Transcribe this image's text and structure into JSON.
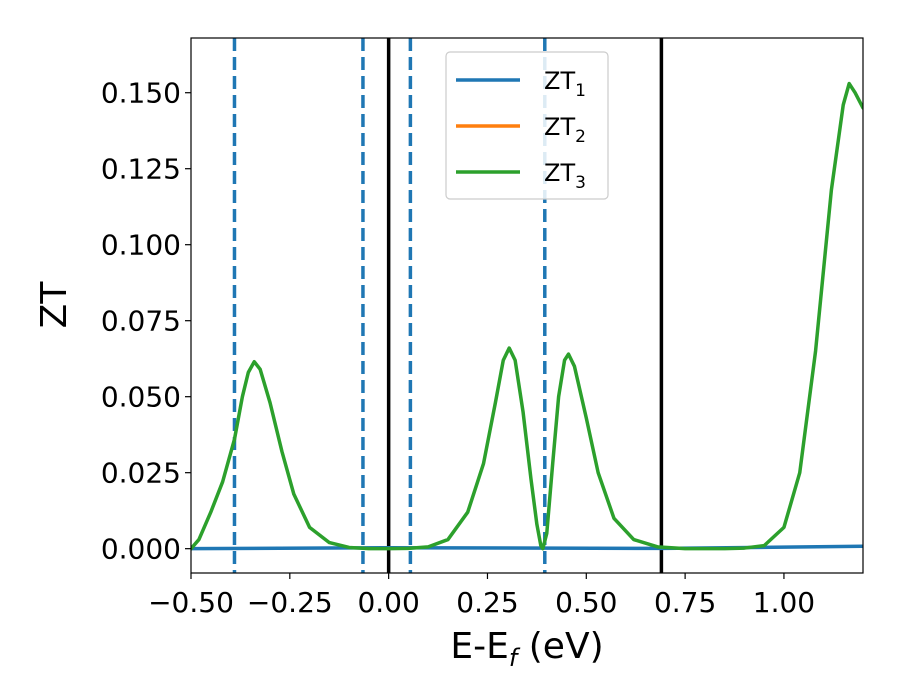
{
  "chart_data": {
    "type": "line",
    "title": "",
    "xlabel_main": "E-E",
    "xlabel_sub": "f",
    "xlabel_tail": " (eV)",
    "ylabel": "ZT",
    "xlim": [
      -0.5,
      1.2
    ],
    "ylim": [
      -0.008,
      0.168
    ],
    "grid": false,
    "legend_position": "upper-center",
    "xticks": [
      -0.5,
      -0.25,
      0.0,
      0.25,
      0.5,
      0.75,
      1.0
    ],
    "xtick_labels": [
      "−0.50",
      "−0.25",
      "0.00",
      "0.25",
      "0.50",
      "0.75",
      "1.00"
    ],
    "yticks": [
      0.0,
      0.025,
      0.05,
      0.075,
      0.1,
      0.125,
      0.15
    ],
    "ytick_labels": [
      "0.000",
      "0.025",
      "0.050",
      "0.075",
      "0.100",
      "0.125",
      "0.150"
    ],
    "vertical_lines": [
      {
        "x": -0.39,
        "style": "dashed",
        "color": "#1f77b4"
      },
      {
        "x": -0.065,
        "style": "dashed",
        "color": "#1f77b4"
      },
      {
        "x": 0.055,
        "style": "dashed",
        "color": "#1f77b4"
      },
      {
        "x": 0.395,
        "style": "dashed",
        "color": "#1f77b4"
      },
      {
        "x": 0.0,
        "style": "solid",
        "color": "#000000"
      },
      {
        "x": 0.69,
        "style": "solid",
        "color": "#000000"
      }
    ],
    "series": [
      {
        "name": "ZT",
        "sub": "1",
        "color": "#1f77b4",
        "points": [
          [
            -0.5,
            0.0
          ],
          [
            0.0,
            0.0003
          ],
          [
            0.7,
            0.0001
          ],
          [
            1.0,
            0.0005
          ],
          [
            1.2,
            0.0008
          ]
        ]
      },
      {
        "name": "ZT",
        "sub": "2",
        "color": "#ff7f0e",
        "points": []
      },
      {
        "name": "ZT",
        "sub": "3",
        "color": "#2ca02c",
        "points": [
          [
            -0.5,
            0.0
          ],
          [
            -0.48,
            0.003
          ],
          [
            -0.45,
            0.012
          ],
          [
            -0.42,
            0.022
          ],
          [
            -0.39,
            0.036
          ],
          [
            -0.37,
            0.05
          ],
          [
            -0.355,
            0.058
          ],
          [
            -0.34,
            0.0615
          ],
          [
            -0.325,
            0.059
          ],
          [
            -0.3,
            0.048
          ],
          [
            -0.27,
            0.032
          ],
          [
            -0.24,
            0.018
          ],
          [
            -0.2,
            0.007
          ],
          [
            -0.15,
            0.002
          ],
          [
            -0.1,
            0.0004
          ],
          [
            -0.05,
            0.0
          ],
          [
            0.0,
            0.0
          ],
          [
            0.05,
            0.0001
          ],
          [
            0.1,
            0.0006
          ],
          [
            0.15,
            0.003
          ],
          [
            0.2,
            0.012
          ],
          [
            0.24,
            0.028
          ],
          [
            0.27,
            0.048
          ],
          [
            0.29,
            0.062
          ],
          [
            0.305,
            0.066
          ],
          [
            0.32,
            0.062
          ],
          [
            0.34,
            0.045
          ],
          [
            0.36,
            0.023
          ],
          [
            0.375,
            0.008
          ],
          [
            0.385,
            0.001
          ],
          [
            0.39,
            0.0
          ],
          [
            0.4,
            0.005
          ],
          [
            0.415,
            0.028
          ],
          [
            0.43,
            0.05
          ],
          [
            0.445,
            0.062
          ],
          [
            0.455,
            0.064
          ],
          [
            0.47,
            0.06
          ],
          [
            0.5,
            0.043
          ],
          [
            0.53,
            0.025
          ],
          [
            0.57,
            0.01
          ],
          [
            0.62,
            0.003
          ],
          [
            0.68,
            0.0006
          ],
          [
            0.75,
            0.0
          ],
          [
            0.85,
            0.0
          ],
          [
            0.9,
            0.0002
          ],
          [
            0.95,
            0.001
          ],
          [
            1.0,
            0.007
          ],
          [
            1.04,
            0.025
          ],
          [
            1.08,
            0.065
          ],
          [
            1.12,
            0.118
          ],
          [
            1.15,
            0.146
          ],
          [
            1.165,
            0.153
          ],
          [
            1.18,
            0.15
          ],
          [
            1.2,
            0.145
          ]
        ]
      }
    ]
  }
}
